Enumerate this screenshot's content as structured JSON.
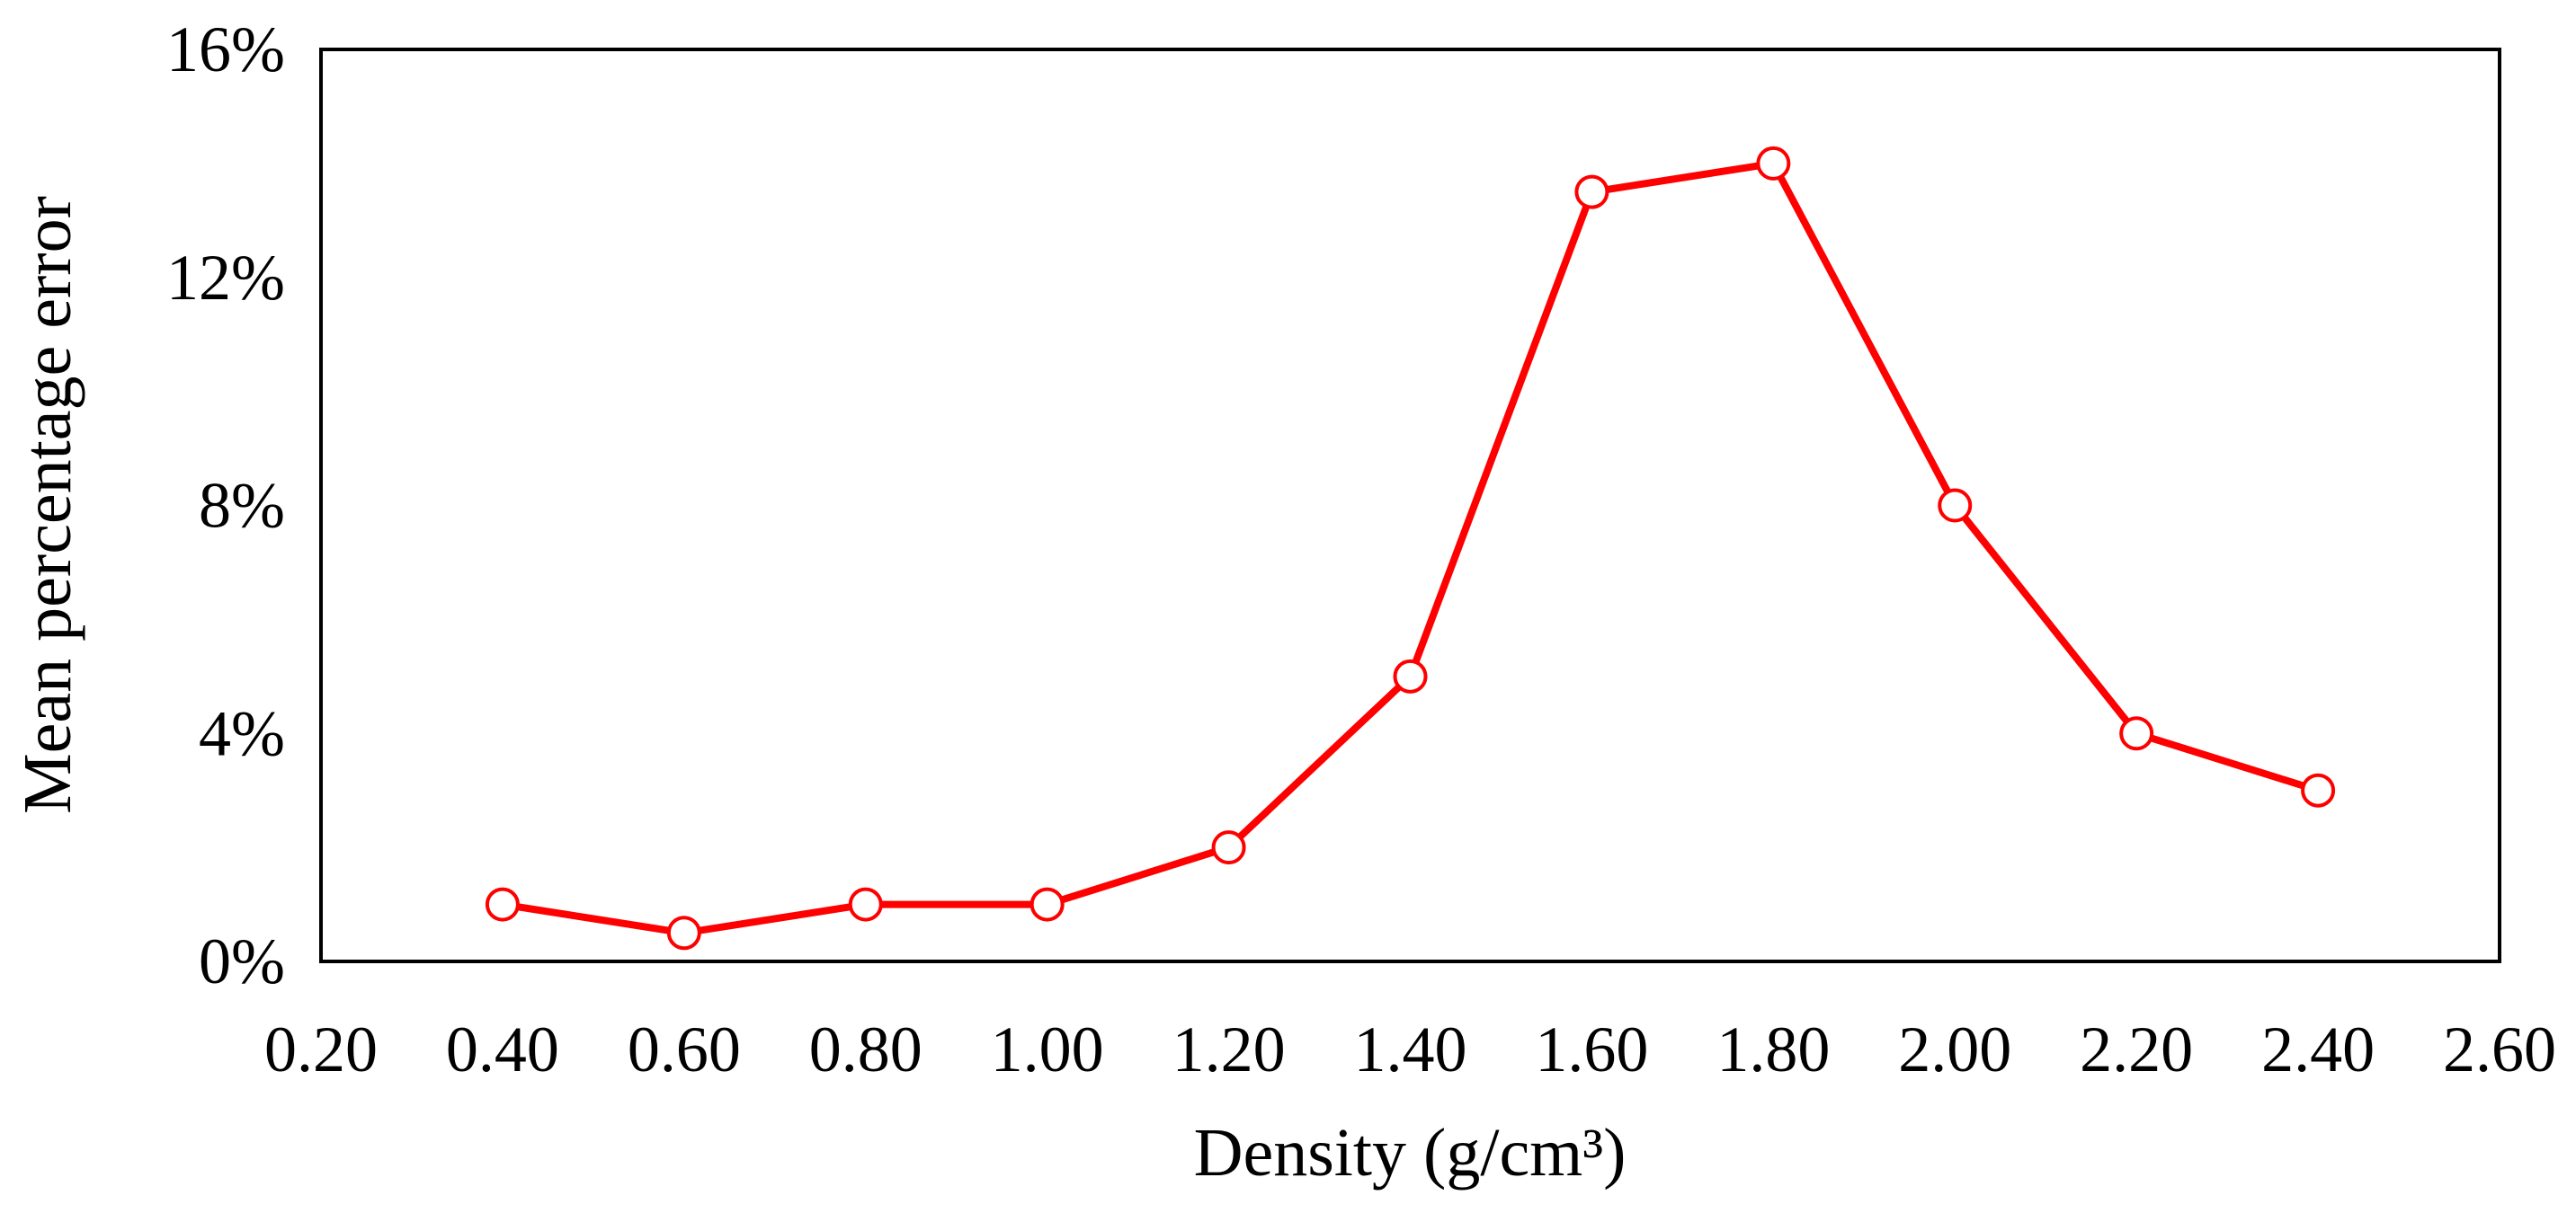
{
  "chart_data": {
    "type": "line",
    "title": "",
    "xlabel": "Density (g/cm³)",
    "ylabel": "Mean percentage error",
    "xlim": [
      0.2,
      2.6
    ],
    "ylim": [
      0,
      0.16
    ],
    "x_ticks": [
      "0.20",
      "0.40",
      "0.60",
      "0.80",
      "1.00",
      "1.20",
      "1.40",
      "1.60",
      "1.80",
      "2.00",
      "2.20",
      "2.40",
      "2.60"
    ],
    "y_ticks": [
      "0%",
      "4%",
      "8%",
      "12%",
      "16%"
    ],
    "grid": false,
    "legend": "none",
    "series": [
      {
        "color": "#ff0000",
        "marker": "open-circle",
        "x": [
          0.4,
          0.6,
          0.8,
          1.0,
          1.2,
          1.4,
          1.6,
          1.8,
          2.0,
          2.2,
          2.4
        ],
        "y": [
          0.01,
          0.005,
          0.01,
          0.01,
          0.02,
          0.05,
          0.135,
          0.14,
          0.08,
          0.04,
          0.03
        ]
      }
    ]
  }
}
